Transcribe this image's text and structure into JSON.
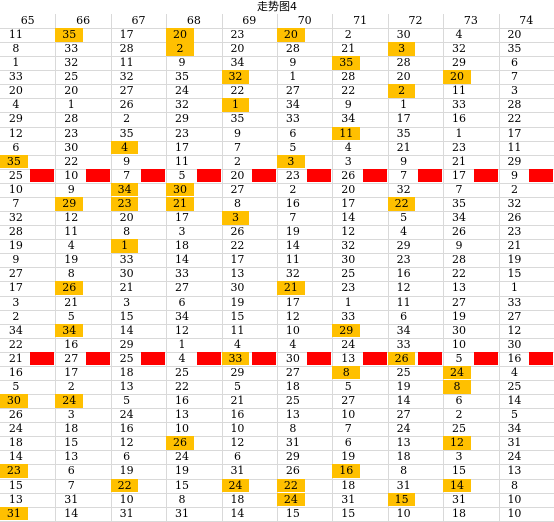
{
  "title": "走势图4",
  "highlight_color": "#FFC000",
  "band_color": "#FF0000",
  "headers": [
    "65",
    "66",
    "67",
    "68",
    "69",
    "70",
    "71",
    "72",
    "73",
    "74"
  ],
  "rows": [
    [
      "11",
      "35",
      "17",
      "20",
      "23",
      "20",
      "2",
      "30",
      "4",
      "20"
    ],
    [
      "8",
      "33",
      "28",
      "2",
      "20",
      "28",
      "21",
      "3",
      "32",
      "35"
    ],
    [
      "1",
      "32",
      "11",
      "9",
      "34",
      "9",
      "35",
      "28",
      "29",
      "6"
    ],
    [
      "33",
      "25",
      "32",
      "35",
      "32",
      "1",
      "28",
      "20",
      "20",
      "7"
    ],
    [
      "20",
      "20",
      "27",
      "24",
      "22",
      "27",
      "22",
      "2",
      "11",
      "3"
    ],
    [
      "4",
      "1",
      "26",
      "32",
      "1",
      "34",
      "9",
      "1",
      "33",
      "28"
    ],
    [
      "29",
      "28",
      "2",
      "29",
      "35",
      "33",
      "34",
      "17",
      "16",
      "22"
    ],
    [
      "12",
      "23",
      "35",
      "23",
      "9",
      "6",
      "11",
      "35",
      "1",
      "17"
    ],
    [
      "6",
      "30",
      "4",
      "17",
      "7",
      "5",
      "4",
      "21",
      "23",
      "11"
    ],
    [
      "35",
      "22",
      "9",
      "11",
      "2",
      "3",
      "3",
      "9",
      "21",
      "29"
    ],
    [
      "25",
      "10",
      "7",
      "5",
      "20",
      "23",
      "26",
      "7",
      "17",
      "9"
    ],
    [
      "10",
      "9",
      "34",
      "30",
      "27",
      "2",
      "20",
      "32",
      "7",
      "2"
    ],
    [
      "7",
      "29",
      "23",
      "21",
      "8",
      "16",
      "17",
      "22",
      "35",
      "32"
    ],
    [
      "32",
      "12",
      "20",
      "17",
      "3",
      "7",
      "14",
      "5",
      "34",
      "26"
    ],
    [
      "28",
      "11",
      "8",
      "3",
      "26",
      "19",
      "12",
      "4",
      "26",
      "23"
    ],
    [
      "19",
      "4",
      "1",
      "18",
      "22",
      "14",
      "32",
      "29",
      "9",
      "21"
    ],
    [
      "9",
      "19",
      "33",
      "14",
      "17",
      "11",
      "30",
      "23",
      "28",
      "19"
    ],
    [
      "27",
      "8",
      "30",
      "33",
      "13",
      "32",
      "25",
      "16",
      "22",
      "15"
    ],
    [
      "17",
      "26",
      "21",
      "27",
      "30",
      "21",
      "23",
      "12",
      "13",
      "1"
    ],
    [
      "3",
      "21",
      "3",
      "6",
      "19",
      "17",
      "1",
      "11",
      "27",
      "33"
    ],
    [
      "2",
      "5",
      "15",
      "34",
      "15",
      "12",
      "33",
      "6",
      "19",
      "27"
    ],
    [
      "34",
      "34",
      "14",
      "12",
      "11",
      "10",
      "29",
      "34",
      "30",
      "12"
    ],
    [
      "22",
      "16",
      "29",
      "1",
      "4",
      "4",
      "24",
      "33",
      "10",
      "30"
    ],
    [
      "21",
      "27",
      "25",
      "4",
      "33",
      "30",
      "13",
      "26",
      "5",
      "16"
    ],
    [
      "16",
      "17",
      "18",
      "25",
      "29",
      "27",
      "8",
      "25",
      "24",
      "4"
    ],
    [
      "5",
      "2",
      "13",
      "22",
      "5",
      "18",
      "5",
      "19",
      "8",
      "25"
    ],
    [
      "30",
      "24",
      "5",
      "16",
      "21",
      "25",
      "27",
      "14",
      "6",
      "14"
    ],
    [
      "26",
      "3",
      "24",
      "13",
      "16",
      "13",
      "10",
      "27",
      "2",
      "5"
    ],
    [
      "24",
      "18",
      "16",
      "10",
      "10",
      "8",
      "7",
      "24",
      "25",
      "34"
    ],
    [
      "18",
      "15",
      "12",
      "26",
      "12",
      "31",
      "6",
      "13",
      "12",
      "31"
    ],
    [
      "14",
      "13",
      "6",
      "24",
      "6",
      "29",
      "19",
      "18",
      "3",
      "24"
    ],
    [
      "23",
      "6",
      "19",
      "19",
      "31",
      "26",
      "16",
      "8",
      "15",
      "13"
    ],
    [
      "15",
      "7",
      "22",
      "15",
      "24",
      "22",
      "18",
      "31",
      "14",
      "8"
    ],
    [
      "13",
      "31",
      "10",
      "8",
      "18",
      "24",
      "31",
      "15",
      "31",
      "10"
    ],
    [
      "31",
      "14",
      "31",
      "31",
      "14",
      "15",
      "15",
      "10",
      "18",
      "10"
    ]
  ],
  "highlights": [
    [
      0,
      1
    ],
    [
      0,
      3
    ],
    [
      0,
      5
    ],
    [
      1,
      3
    ],
    [
      1,
      7
    ],
    [
      2,
      6
    ],
    [
      3,
      4
    ],
    [
      3,
      8
    ],
    [
      4,
      7
    ],
    [
      5,
      4
    ],
    [
      7,
      6
    ],
    [
      8,
      2
    ],
    [
      9,
      0
    ],
    [
      9,
      5
    ],
    [
      11,
      2
    ],
    [
      11,
      3
    ],
    [
      12,
      1
    ],
    [
      12,
      2
    ],
    [
      12,
      3
    ],
    [
      12,
      7
    ],
    [
      13,
      4
    ],
    [
      15,
      2
    ],
    [
      18,
      1
    ],
    [
      18,
      5
    ],
    [
      21,
      1
    ],
    [
      21,
      6
    ],
    [
      23,
      4
    ],
    [
      23,
      7
    ],
    [
      24,
      6
    ],
    [
      24,
      8
    ],
    [
      25,
      8
    ],
    [
      26,
      0
    ],
    [
      26,
      1
    ],
    [
      29,
      3
    ],
    [
      29,
      8
    ],
    [
      31,
      0
    ],
    [
      31,
      6
    ],
    [
      32,
      2
    ],
    [
      32,
      4
    ],
    [
      32,
      5
    ],
    [
      32,
      8
    ],
    [
      33,
      5
    ],
    [
      33,
      7
    ],
    [
      34,
      0
    ]
  ],
  "band_rows": [
    10,
    23
  ]
}
